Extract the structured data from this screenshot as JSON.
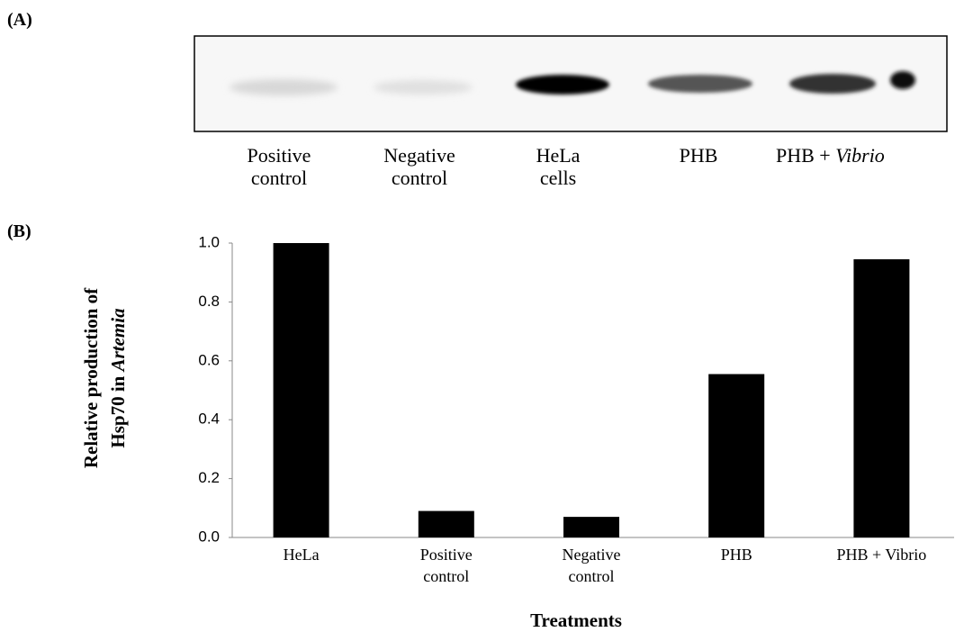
{
  "panel_a": {
    "label": "(A)",
    "lanes": [
      [
        "Positive",
        "control"
      ],
      [
        "Negative",
        "control"
      ],
      [
        "HeLa",
        "cells"
      ],
      [
        "PHB"
      ],
      [
        "PHB + ",
        "Vibrio"
      ]
    ]
  },
  "chart_data": {
    "type": "bar",
    "panel_label": "(B)",
    "categories": [
      [
        "HeLa"
      ],
      [
        "Positive",
        "control"
      ],
      [
        "Negative",
        "control"
      ],
      [
        "PHB"
      ],
      [
        "PHB + Vibrio"
      ]
    ],
    "values": [
      1.0,
      0.09,
      0.07,
      0.555,
      0.945
    ],
    "color": "#000000",
    "ylim": [
      0,
      1.0
    ],
    "yticks": [
      {
        "value": 0,
        "label": "0.0"
      },
      0.2,
      0.4,
      0.6,
      0.8,
      {
        "value": 1.0,
        "label": "1.0"
      }
    ],
    "ylabel": [
      "Relative production of",
      "Hsp70 in "
    ],
    "ylabel_italic": "Artemia",
    "xlabel": "Treatments",
    "grid": false
  }
}
